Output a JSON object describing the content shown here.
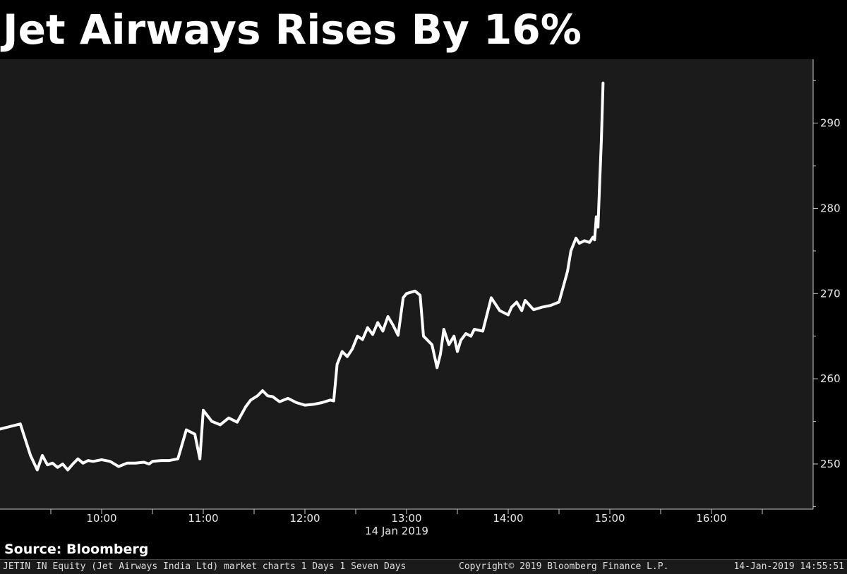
{
  "header": {
    "title": "Jet Airways Rises By 16%"
  },
  "source": {
    "label": "Source: Bloomberg"
  },
  "footer": {
    "left": "JETIN IN Equity (Jet Airways India Ltd) market charts 1 Days 1 Seven Days",
    "middle": "Copyright© 2019 Bloomberg Finance L.P.",
    "right": "14-Jan-2019 14:55:51"
  },
  "colors": {
    "background": "#000000",
    "plot_bg": "#1b1b1b",
    "line": "#ffffff",
    "axis": "#cccccc"
  },
  "chart_data": {
    "type": "line",
    "title": "Jet Airways Rises By 16%",
    "xlabel": "14 Jan 2019",
    "ylabel": "",
    "x_ticks": [
      "10:00",
      "11:00",
      "12:00",
      "13:00",
      "14:00",
      "15:00",
      "16:00"
    ],
    "y_ticks": [
      250,
      260,
      270,
      280,
      290
    ],
    "xlim": [
      "09:00",
      "17:00"
    ],
    "ylim": [
      244.7,
      297.5
    ],
    "grid": false,
    "y_axis_position": "right",
    "series": [
      {
        "x": [
          "09:00",
          "09:12",
          "09:18",
          "09:22",
          "09:25",
          "09:28",
          "09:31",
          "09:34",
          "09:37",
          "09:40",
          "09:43",
          "09:46",
          "09:49",
          "09:52",
          "09:55",
          "10:00",
          "10:05",
          "10:10",
          "10:15",
          "10:20",
          "10:25",
          "10:28",
          "10:30",
          "10:35",
          "10:40",
          "10:45",
          "10:50",
          "10:55",
          "11:00",
          "11:05",
          "11:10",
          "11:15",
          "10:58",
          "11:20",
          "11:25",
          "11:28",
          "11:32",
          "11:35",
          "11:38",
          "11:41",
          "11:45",
          "11:50",
          "11:55",
          "12:00",
          "12:05",
          "12:10",
          "12:15",
          "12:17",
          "12:19",
          "12:22",
          "12:25",
          "12:28",
          "12:31",
          "12:34",
          "12:37",
          "12:40",
          "12:43",
          "12:46",
          "12:49",
          "12:52",
          "12:55",
          "12:58",
          "13:00",
          "13:05",
          "13:08",
          "13:10",
          "13:15",
          "13:18",
          "13:20",
          "13:22",
          "13:25",
          "13:28",
          "13:30",
          "13:32",
          "13:35",
          "13:38",
          "13:40",
          "13:45",
          "13:50",
          "13:55",
          "14:00",
          "14:02",
          "14:05",
          "14:08",
          "14:10",
          "14:15",
          "14:20",
          "14:25",
          "14:30",
          "14:35",
          "14:37",
          "14:40",
          "14:42",
          "14:45",
          "14:48",
          "14:50",
          "14:51",
          "14:52",
          "14:53",
          "14:54",
          "14:55",
          "14:56"
        ],
        "values": [
          254.1,
          254.7,
          251.0,
          249.3,
          251.0,
          249.9,
          250.1,
          249.6,
          250.0,
          249.3,
          250.0,
          250.6,
          250.1,
          250.4,
          250.3,
          250.5,
          250.3,
          249.7,
          250.1,
          250.1,
          250.2,
          250.0,
          250.3,
          250.4,
          250.4,
          250.6,
          254.0,
          253.5,
          256.3,
          255.0,
          254.6,
          255.4,
          250.6,
          254.9,
          256.7,
          257.5,
          258.0,
          258.6,
          258.0,
          257.9,
          257.3,
          257.7,
          257.2,
          256.9,
          257.0,
          257.2,
          257.5,
          257.4,
          261.7,
          263.2,
          262.6,
          263.5,
          265.0,
          264.6,
          266.0,
          265.2,
          266.6,
          265.6,
          267.3,
          266.3,
          265.1,
          269.5,
          270.0,
          270.3,
          269.8,
          265.0,
          264.0,
          261.3,
          262.9,
          265.8,
          264.0,
          265.0,
          263.2,
          264.5,
          265.3,
          265.0,
          265.8,
          265.6,
          269.5,
          268.0,
          267.5,
          268.4,
          269.0,
          268.0,
          269.2,
          268.1,
          268.4,
          268.6,
          269.0,
          272.6,
          275.0,
          276.5,
          275.9,
          276.2,
          276.0,
          276.6,
          276.3,
          279.0,
          277.8,
          283.0,
          288.0,
          294.7
        ]
      }
    ]
  }
}
